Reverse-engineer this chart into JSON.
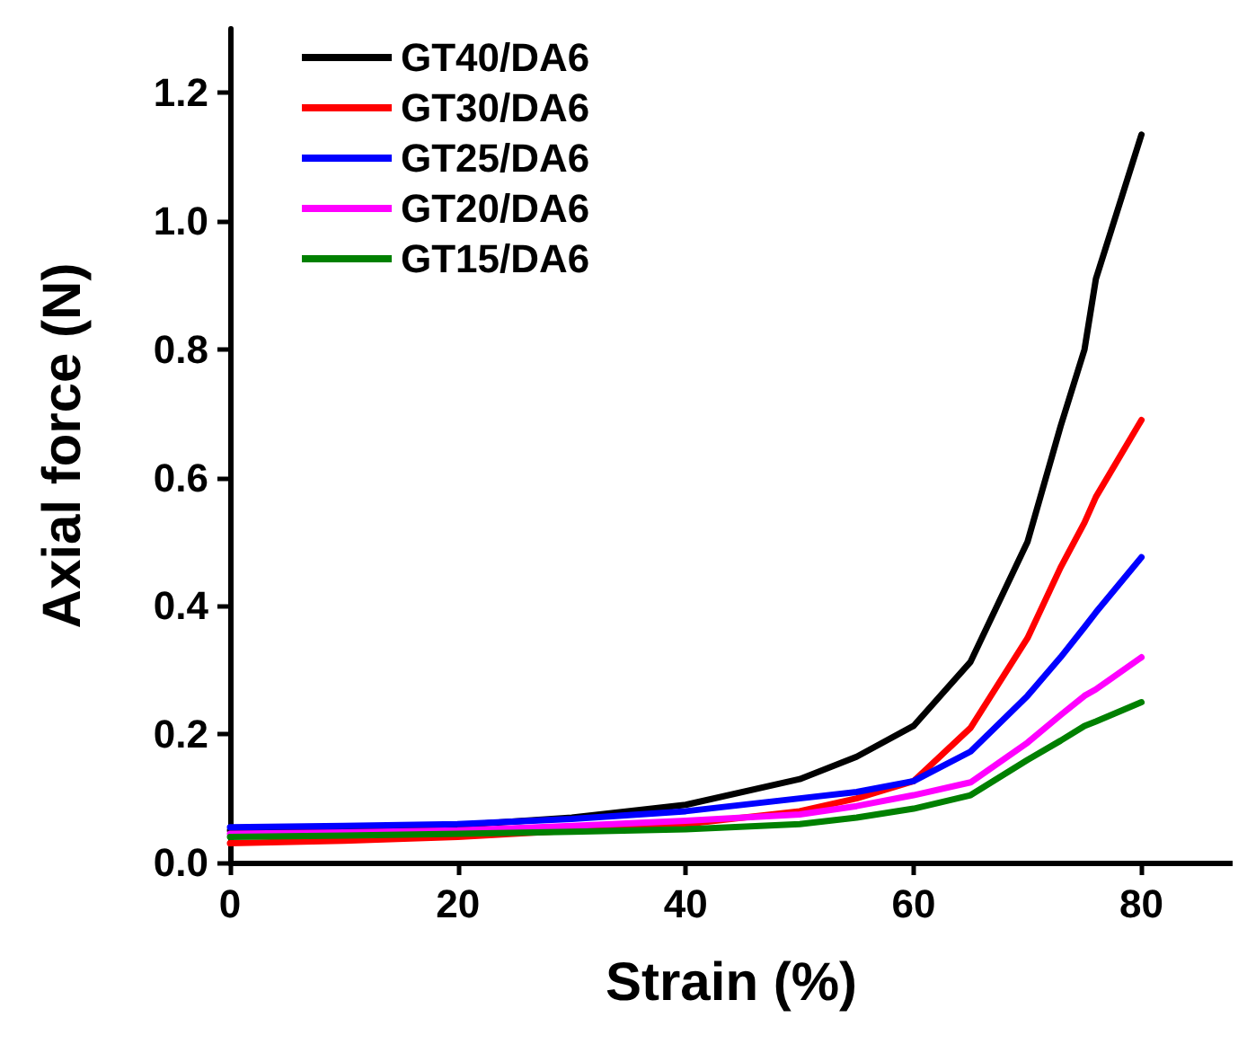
{
  "chart_data": {
    "type": "line",
    "xlabel": "Strain (%)",
    "ylabel": "Axial force (N)",
    "x": [
      0,
      10,
      20,
      30,
      40,
      50,
      55,
      60,
      65,
      70,
      72.9,
      75,
      76,
      80
    ],
    "series": [
      {
        "name": "GT40/DA6",
        "color": "#000000",
        "values": [
          0.05,
          0.053,
          0.058,
          0.07,
          0.09,
          0.13,
          0.165,
          0.213,
          0.313,
          0.5,
          0.68,
          0.8,
          0.91,
          1.135
        ]
      },
      {
        "name": "GT30/DA6",
        "color": "#ff0000",
        "values": [
          0.03,
          0.034,
          0.04,
          null,
          0.06,
          0.08,
          0.1,
          0.127,
          0.21,
          0.35,
          0.46,
          0.53,
          0.57,
          0.69
        ]
      },
      {
        "name": "GT25/DA6",
        "color": "#0000ff",
        "values": [
          0.055,
          0.057,
          0.06,
          0.068,
          0.08,
          0.1,
          0.11,
          0.127,
          0.173,
          0.26,
          0.32,
          0.367,
          0.39,
          0.476
        ]
      },
      {
        "name": "GT20/DA6",
        "color": "#ff00ff",
        "values": [
          0.045,
          0.047,
          0.05,
          0.057,
          0.065,
          0.075,
          0.088,
          0.105,
          0.125,
          0.187,
          0.23,
          0.26,
          0.27,
          0.32
        ]
      },
      {
        "name": "GT15/DA6",
        "color": "#008000",
        "values": [
          0.04,
          0.042,
          0.045,
          0.048,
          0.052,
          0.06,
          0.07,
          0.084,
          0.105,
          0.16,
          0.19,
          0.213,
          0.22,
          0.25
        ]
      }
    ],
    "xlim": [
      0,
      88
    ],
    "xticks": [
      0,
      20,
      40,
      60,
      80
    ],
    "ylim": [
      0,
      1.3
    ],
    "yticks": [
      {
        "value": 0,
        "label": "0.0"
      },
      {
        "value": 0.2,
        "label": "0.2"
      },
      {
        "value": 0.4,
        "label": "0.4"
      },
      {
        "value": 0.6,
        "label": "0.6"
      },
      {
        "value": 0.8,
        "label": "0.8"
      },
      {
        "value": 1.0,
        "label": "1.0"
      },
      {
        "value": 1.2,
        "label": "1.2"
      }
    ],
    "grid": false,
    "legend": "top left",
    "marker": "none",
    "line_style": "solid"
  }
}
